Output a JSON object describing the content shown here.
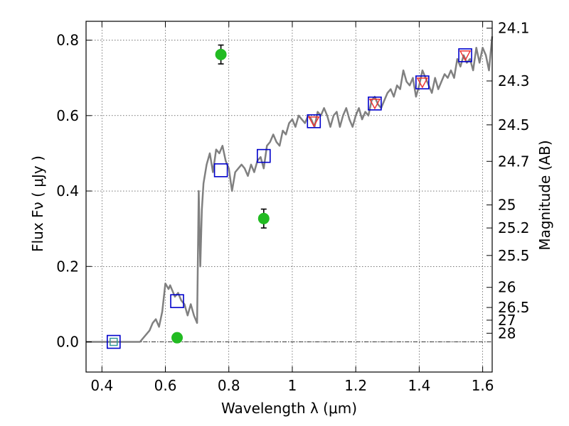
{
  "chart_data": {
    "type": "scatter",
    "xlabel": "Wavelength  λ (μm)",
    "ylabel": "Flux  Fν ( μJy )",
    "y2label": "Magnitude (AB)",
    "xlim": [
      0.35,
      1.63
    ],
    "ylim": [
      -0.08,
      0.85
    ],
    "x_ticks": [
      0.4,
      0.6,
      0.8,
      1.0,
      1.2,
      1.4,
      1.6
    ],
    "x_tick_labels": [
      "0.4",
      "0.6",
      "0.8",
      "1",
      "1.2",
      "1.4",
      "1.6"
    ],
    "y_ticks": [
      0.0,
      0.2,
      0.4,
      0.6,
      0.8
    ],
    "y_tick_labels": [
      "0.0",
      "0.2",
      "0.4",
      "0.6",
      "0.8"
    ],
    "mag_ticks": [
      {
        "mag": 24.1,
        "label": "24.1"
      },
      {
        "mag": 24.3,
        "label": "24.3"
      },
      {
        "mag": 24.5,
        "label": "24.5"
      },
      {
        "mag": 24.7,
        "label": "24.7"
      },
      {
        "mag": 25.0,
        "label": "25"
      },
      {
        "mag": 25.2,
        "label": "25.2"
      },
      {
        "mag": 25.5,
        "label": "25.5"
      },
      {
        "mag": 26.0,
        "label": "26"
      },
      {
        "mag": 26.5,
        "label": "26.5"
      },
      {
        "mag": 27.0,
        "label": "27"
      },
      {
        "mag": 28.0,
        "label": "28"
      }
    ],
    "grid": true,
    "zero_line": true,
    "colors": {
      "spectrum": "#808080",
      "model_square": "#0000cc",
      "model_triangle": "#ee3333",
      "model_square_teal": "#339999",
      "observed": "#22bb22",
      "errorbar": "#000000"
    },
    "series": [
      {
        "kind": "line",
        "x": [
          0.35,
          0.52,
          0.55,
          0.56,
          0.57,
          0.58,
          0.59,
          0.6,
          0.61,
          0.615,
          0.63,
          0.64,
          0.65,
          0.66,
          0.67,
          0.68,
          0.69,
          0.7,
          0.705,
          0.71,
          0.715,
          0.72,
          0.73,
          0.74,
          0.75,
          0.76,
          0.77,
          0.78,
          0.79,
          0.8,
          0.81,
          0.82,
          0.83,
          0.84,
          0.85,
          0.86,
          0.87,
          0.88,
          0.89,
          0.9,
          0.91,
          0.92,
          0.93,
          0.94,
          0.95,
          0.96,
          0.97,
          0.98,
          0.99,
          1.0,
          1.01,
          1.02,
          1.03,
          1.04,
          1.05,
          1.06,
          1.07,
          1.08,
          1.09,
          1.1,
          1.11,
          1.12,
          1.13,
          1.14,
          1.15,
          1.16,
          1.17,
          1.18,
          1.19,
          1.2,
          1.21,
          1.22,
          1.23,
          1.24,
          1.25,
          1.26,
          1.27,
          1.28,
          1.29,
          1.3,
          1.31,
          1.32,
          1.33,
          1.34,
          1.35,
          1.36,
          1.37,
          1.38,
          1.39,
          1.4,
          1.41,
          1.42,
          1.43,
          1.44,
          1.45,
          1.46,
          1.47,
          1.48,
          1.49,
          1.5,
          1.51,
          1.52,
          1.53,
          1.54,
          1.55,
          1.56,
          1.57,
          1.58,
          1.59,
          1.6,
          1.61,
          1.62,
          1.63
        ],
        "y": [
          0.0,
          0.0,
          0.03,
          0.05,
          0.06,
          0.04,
          0.08,
          0.155,
          0.14,
          0.15,
          0.12,
          0.13,
          0.11,
          0.1,
          0.07,
          0.1,
          0.07,
          0.05,
          0.4,
          0.2,
          0.35,
          0.42,
          0.47,
          0.5,
          0.45,
          0.51,
          0.5,
          0.52,
          0.48,
          0.46,
          0.4,
          0.45,
          0.46,
          0.47,
          0.46,
          0.44,
          0.47,
          0.45,
          0.48,
          0.49,
          0.46,
          0.52,
          0.53,
          0.55,
          0.53,
          0.52,
          0.56,
          0.55,
          0.58,
          0.59,
          0.57,
          0.6,
          0.59,
          0.58,
          0.6,
          0.59,
          0.57,
          0.61,
          0.6,
          0.62,
          0.6,
          0.57,
          0.6,
          0.61,
          0.57,
          0.6,
          0.62,
          0.59,
          0.57,
          0.6,
          0.62,
          0.59,
          0.61,
          0.6,
          0.64,
          0.65,
          0.63,
          0.62,
          0.64,
          0.66,
          0.67,
          0.65,
          0.68,
          0.67,
          0.72,
          0.69,
          0.68,
          0.7,
          0.65,
          0.68,
          0.72,
          0.7,
          0.68,
          0.66,
          0.7,
          0.67,
          0.69,
          0.71,
          0.7,
          0.72,
          0.7,
          0.75,
          0.73,
          0.76,
          0.74,
          0.75,
          0.72,
          0.78,
          0.74,
          0.78,
          0.76,
          0.72,
          0.81
        ]
      },
      {
        "kind": "model_squares",
        "x": [
          0.437,
          0.637,
          0.775,
          0.91,
          1.068,
          1.26,
          1.41,
          1.545
        ],
        "y": [
          0.0,
          0.108,
          0.455,
          0.493,
          0.585,
          0.632,
          0.688,
          0.76
        ]
      },
      {
        "kind": "model_triangles",
        "x": [
          1.068,
          1.26,
          1.41,
          1.545
        ],
        "y": [
          0.585,
          0.632,
          0.688,
          0.76
        ]
      },
      {
        "kind": "observed",
        "x": [
          0.637,
          0.775,
          0.91
        ],
        "y": [
          0.011,
          0.762,
          0.327
        ],
        "yerr": [
          0.012,
          0.025,
          0.025
        ]
      }
    ]
  }
}
